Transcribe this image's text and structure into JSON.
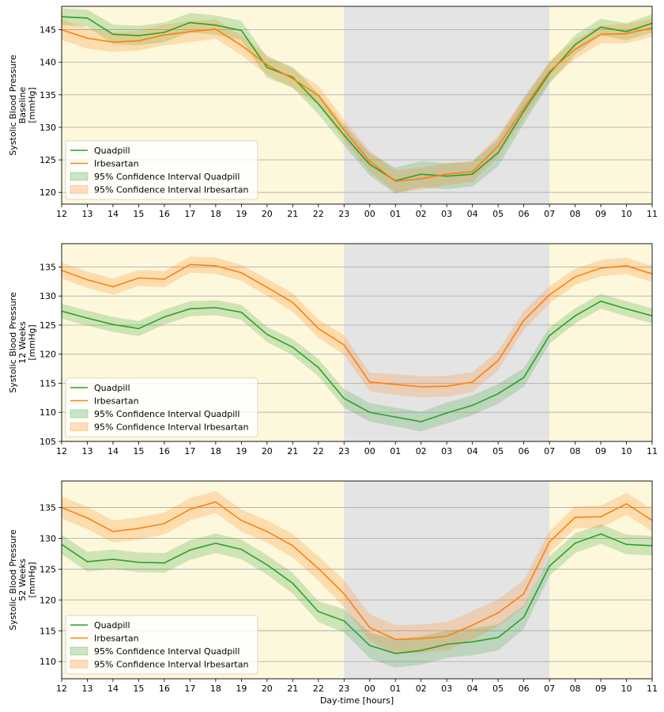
{
  "chart_data": {
    "type": "line",
    "title": "",
    "xlabel": "Day-time [hours]",
    "categories": [
      "12",
      "13",
      "14",
      "15",
      "16",
      "17",
      "18",
      "19",
      "20",
      "21",
      "22",
      "23",
      "00",
      "01",
      "02",
      "03",
      "04",
      "05",
      "06",
      "07",
      "08",
      "09",
      "10",
      "11"
    ],
    "night_shading": {
      "from": "23",
      "to": "07"
    },
    "colors": {
      "quadpill": "#2ca02c",
      "irbesartan": "#ff7f0e",
      "day_background": "#fdf8dc",
      "night_background": "#e4e4e4",
      "grid": "#b0b0b0"
    },
    "legend": {
      "placement": "lower-left",
      "entries": [
        "Quadpill",
        "Irbesartan",
        "95% Confidence Interval Quadpill",
        "95% Confidence Interval Irbesartan"
      ]
    },
    "panels": [
      {
        "ylabel_lines": [
          "Systolic Blood Pressure",
          "Baseline",
          "[mmHg]"
        ],
        "ylim": [
          118.2,
          148.6
        ],
        "yticks": [
          120,
          125,
          130,
          135,
          140,
          145
        ],
        "series": [
          {
            "name": "Quadpill",
            "values": [
              147.0,
              146.8,
              144.3,
              144.1,
              144.6,
              146.1,
              145.7,
              144.9,
              139.2,
              137.7,
              133.6,
              128.8,
              124.3,
              121.8,
              122.8,
              122.5,
              122.8,
              126.1,
              132.5,
              138.3,
              142.7,
              145.4,
              144.7,
              146.0
            ],
            "ci_low": [
              145.7,
              145.5,
              142.8,
              142.6,
              143.1,
              144.6,
              144.2,
              143.4,
              137.6,
              136.1,
              132.0,
              127.2,
              122.6,
              119.8,
              120.8,
              120.5,
              120.9,
              124.0,
              130.6,
              136.7,
              141.2,
              144.1,
              143.4,
              144.6
            ],
            "ci_high": [
              148.3,
              148.1,
              145.8,
              145.6,
              146.1,
              147.6,
              147.2,
              146.4,
              140.8,
              139.3,
              135.2,
              130.4,
              126.0,
              123.8,
              124.8,
              124.5,
              124.7,
              128.2,
              134.4,
              139.9,
              144.2,
              146.7,
              146.0,
              147.4
            ]
          },
          {
            "name": "Irbesartan",
            "values": [
              145.0,
              143.7,
              143.1,
              143.3,
              144.2,
              144.7,
              145.1,
              142.6,
              139.6,
              137.5,
              134.9,
              129.6,
              124.8,
              121.7,
              122.1,
              122.8,
              123.2,
              127.1,
              133.0,
              138.6,
              142.0,
              144.3,
              144.4,
              145.3
            ],
            "ci_low": [
              143.4,
              142.1,
              141.6,
              141.8,
              142.6,
              143.1,
              143.6,
              141.1,
              138.1,
              136.0,
              133.4,
              128.0,
              123.2,
              120.0,
              120.4,
              121.1,
              121.6,
              125.5,
              131.4,
              137.0,
              140.5,
              142.9,
              142.9,
              143.9
            ],
            "ci_high": [
              146.6,
              145.3,
              144.6,
              144.8,
              145.8,
              146.3,
              146.6,
              144.1,
              141.1,
              139.0,
              136.4,
              131.2,
              126.4,
              123.4,
              123.8,
              124.5,
              124.8,
              128.7,
              134.6,
              140.2,
              143.5,
              145.7,
              145.9,
              146.7
            ]
          }
        ]
      },
      {
        "ylabel_lines": [
          "Systolic Blood Pressure",
          "12 Weeks",
          "[mmHg]"
        ],
        "ylim": [
          105.0,
          139.0
        ],
        "yticks": [
          105,
          110,
          115,
          120,
          125,
          130,
          135
        ],
        "series": [
          {
            "name": "Quadpill",
            "values": [
              127.4,
              126.2,
              125.1,
              124.4,
              126.4,
              127.8,
              128.0,
              127.2,
              123.4,
              121.2,
              117.7,
              112.4,
              110.0,
              109.2,
              108.4,
              109.9,
              111.2,
              113.2,
              116.0,
              123.2,
              126.6,
              129.1,
              127.8,
              126.6
            ],
            "ci_low": [
              126.1,
              124.9,
              123.8,
              123.1,
              125.1,
              126.5,
              126.7,
              125.9,
              122.1,
              119.8,
              116.2,
              110.8,
              108.4,
              107.6,
              106.7,
              108.1,
              109.5,
              111.5,
              114.4,
              121.8,
              125.3,
              127.8,
              126.5,
              125.3
            ],
            "ci_high": [
              128.7,
              127.5,
              126.4,
              125.7,
              127.7,
              129.1,
              129.3,
              128.5,
              124.7,
              122.6,
              119.2,
              114.0,
              111.6,
              110.8,
              110.1,
              111.7,
              112.9,
              114.9,
              117.6,
              124.6,
              127.9,
              130.4,
              129.1,
              127.9
            ]
          },
          {
            "name": "Irbesartan",
            "values": [
              134.4,
              132.8,
              131.6,
              133.1,
              132.9,
              135.4,
              135.2,
              134.0,
              131.5,
              128.9,
              124.4,
              121.6,
              115.2,
              114.8,
              114.4,
              114.5,
              115.2,
              118.9,
              125.8,
              130.2,
              133.3,
              134.8,
              135.2,
              133.8
            ],
            "ci_low": [
              133.0,
              131.4,
              130.2,
              131.7,
              131.5,
              134.0,
              133.8,
              132.6,
              130.0,
              127.3,
              122.8,
              119.9,
              113.6,
              113.0,
              112.6,
              112.7,
              113.5,
              117.2,
              124.2,
              128.7,
              131.9,
              133.4,
              133.8,
              132.4
            ],
            "ci_high": [
              135.8,
              134.2,
              133.0,
              134.5,
              134.3,
              136.8,
              136.6,
              135.4,
              133.0,
              130.5,
              126.0,
              123.3,
              116.8,
              116.6,
              116.2,
              116.3,
              116.9,
              120.6,
              127.4,
              131.7,
              134.7,
              136.2,
              136.6,
              135.2
            ]
          }
        ]
      },
      {
        "ylabel_lines": [
          "Systolic Blood Pressure",
          "52 Weeks",
          "[mmHg]"
        ],
        "ylim": [
          107.2,
          139.3
        ],
        "yticks": [
          110,
          115,
          120,
          125,
          130,
          135
        ],
        "series": [
          {
            "name": "Quadpill",
            "values": [
              129.0,
              126.2,
              126.6,
              126.1,
              126.0,
              128.1,
              129.2,
              128.2,
              125.7,
              122.7,
              118.1,
              116.6,
              112.6,
              111.3,
              111.8,
              112.8,
              113.2,
              113.9,
              117.2,
              125.5,
              129.2,
              130.7,
              129.0,
              128.8
            ],
            "ci_low": [
              127.4,
              124.6,
              125.0,
              124.5,
              124.4,
              126.5,
              127.6,
              126.6,
              124.1,
              121.0,
              116.4,
              114.7,
              110.5,
              109.0,
              109.5,
              110.6,
              111.0,
              111.8,
              115.3,
              123.9,
              127.6,
              129.1,
              127.4,
              127.2
            ],
            "ci_high": [
              130.6,
              127.8,
              128.2,
              127.7,
              127.6,
              129.7,
              130.8,
              129.8,
              127.3,
              124.4,
              119.8,
              118.5,
              114.7,
              113.6,
              114.1,
              115.0,
              115.4,
              116.0,
              119.1,
              127.1,
              130.8,
              132.3,
              130.6,
              130.4
            ]
          },
          {
            "name": "Irbesartan",
            "values": [
              135.0,
              133.3,
              131.1,
              131.6,
              132.4,
              134.7,
              135.9,
              132.9,
              131.1,
              128.8,
              125.1,
              121.0,
              115.5,
              113.6,
              113.7,
              114.1,
              115.9,
              117.9,
              121.0,
              129.4,
              133.4,
              133.5,
              135.6,
              132.9
            ],
            "ci_low": [
              133.2,
              131.5,
              129.3,
              129.8,
              130.6,
              132.9,
              134.1,
              131.1,
              129.3,
              126.9,
              123.1,
              118.8,
              113.3,
              111.3,
              111.4,
              111.8,
              113.6,
              115.7,
              118.8,
              127.6,
              131.6,
              131.7,
              133.8,
              131.1
            ],
            "ci_high": [
              136.8,
              135.1,
              132.9,
              133.4,
              134.2,
              136.5,
              137.7,
              134.7,
              132.9,
              130.7,
              127.1,
              123.2,
              117.7,
              115.9,
              116.0,
              116.4,
              118.2,
              120.1,
              123.2,
              131.2,
              135.2,
              135.3,
              137.4,
              134.7
            ]
          }
        ]
      }
    ]
  }
}
